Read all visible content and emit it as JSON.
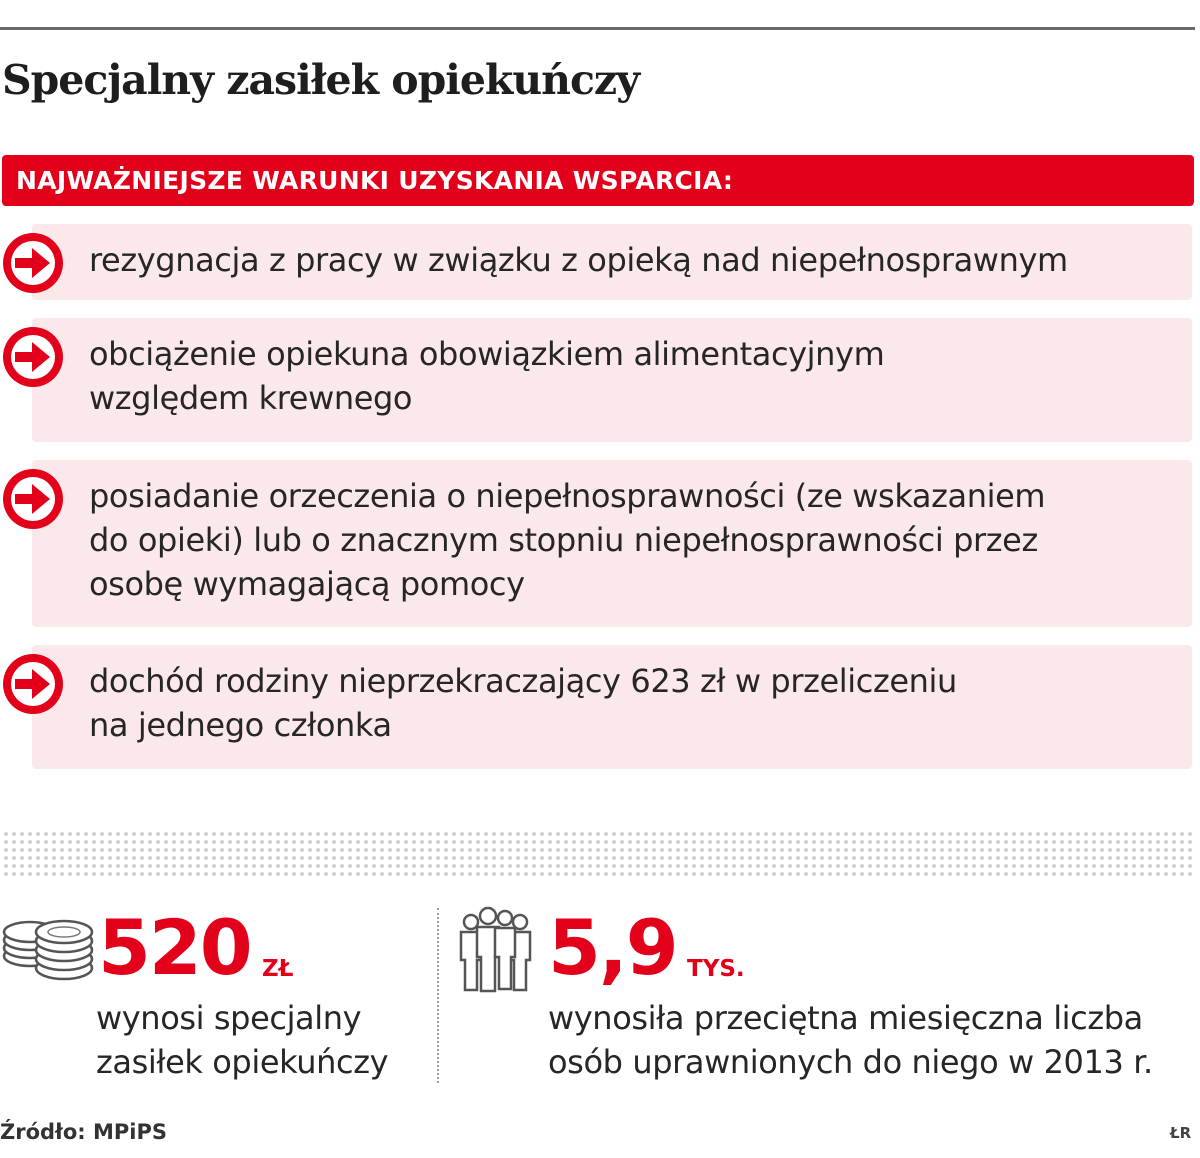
{
  "title": "Specjalny zasiłek opiekuńczy",
  "banner": "NAJWAŻNIEJSZE WARUNKI UZYSKANIA WSPARCIA:",
  "conditions": [
    "rezygnacja z pracy w związku z opieką nad niepełnosprawnym",
    "obciążenie opiekuna obowiązkiem alimentacyjnym\nwzględem krewnego",
    "posiadanie orzeczenia o niepełnosprawności (ze wskazaniem\ndo opieki) lub o znacznym stopniu niepełnosprawności przez\nosobę wymagającą pomocy",
    "dochód rodziny nieprzekraczający 623 zł w przeliczeniu\nna jednego członka"
  ],
  "stats": [
    {
      "value": "520",
      "unit": "ZŁ",
      "description": "wynosi specjalny\nzasiłek opiekuńczy",
      "icon": "coins-icon"
    },
    {
      "value": "5,9",
      "unit": "TYS.",
      "description": "wynosiła przeciętna miesięczna liczba\nosób uprawnionych do niego w 2013 r.",
      "icon": "people-icon"
    }
  ],
  "source": "Źródło: MPiPS",
  "credit": "ŁR",
  "colors": {
    "accent": "#e3001b",
    "item_background": "#fbe8ea"
  }
}
